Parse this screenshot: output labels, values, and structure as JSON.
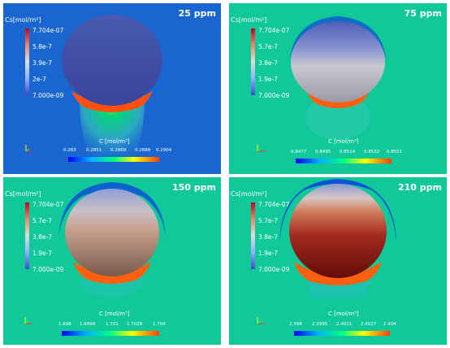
{
  "panels": [
    {
      "ppm": "25 ppm",
      "cs_title": "Cs[mol/m²]",
      "cs_ticks": [
        "7.704e-07",
        "5.8e-7",
        "3.9e-7",
        "2e-7",
        "7.000e-09"
      ],
      "c_title": "C [mol/m³]",
      "c_ticks": [
        "0.283",
        "0.2851",
        "0.2869",
        "0.2888",
        "0.2904"
      ]
    },
    {
      "ppm": "75 ppm",
      "cs_title": "Cs[mol/m²]",
      "cs_ticks": [
        "7.704e-07",
        "5.7e-7",
        "3.8e-7",
        "1.9e-7",
        "7.000e-09"
      ],
      "c_title": "C [mol/m³]",
      "c_ticks": [
        "0.8477",
        "0.8495",
        "0.8514",
        "0.8532",
        "0.8551"
      ]
    },
    {
      "ppm": "150 ppm",
      "cs_title": "Cs[mol/m²]",
      "cs_ticks": [
        "7.704e-07",
        "5.7e-7",
        "3.8e-7",
        "1.9e-7",
        "7.000e-09"
      ],
      "c_title": "C [mol/m³]",
      "c_ticks": [
        "1.698",
        "1.6994",
        "1.701",
        "1.7026",
        "1.704"
      ]
    },
    {
      "ppm": "210 ppm",
      "cs_title": "Cs[mol/m²]",
      "cs_ticks": [
        "7.704e-07",
        "5.7e-7",
        "3.8e-7",
        "1.9e-7",
        "7.000e-09"
      ],
      "c_title": "C [mol/m³]",
      "c_ticks": [
        "2.398",
        "2.3995",
        "2.4011",
        "2.4027",
        "2.404"
      ]
    }
  ]
}
